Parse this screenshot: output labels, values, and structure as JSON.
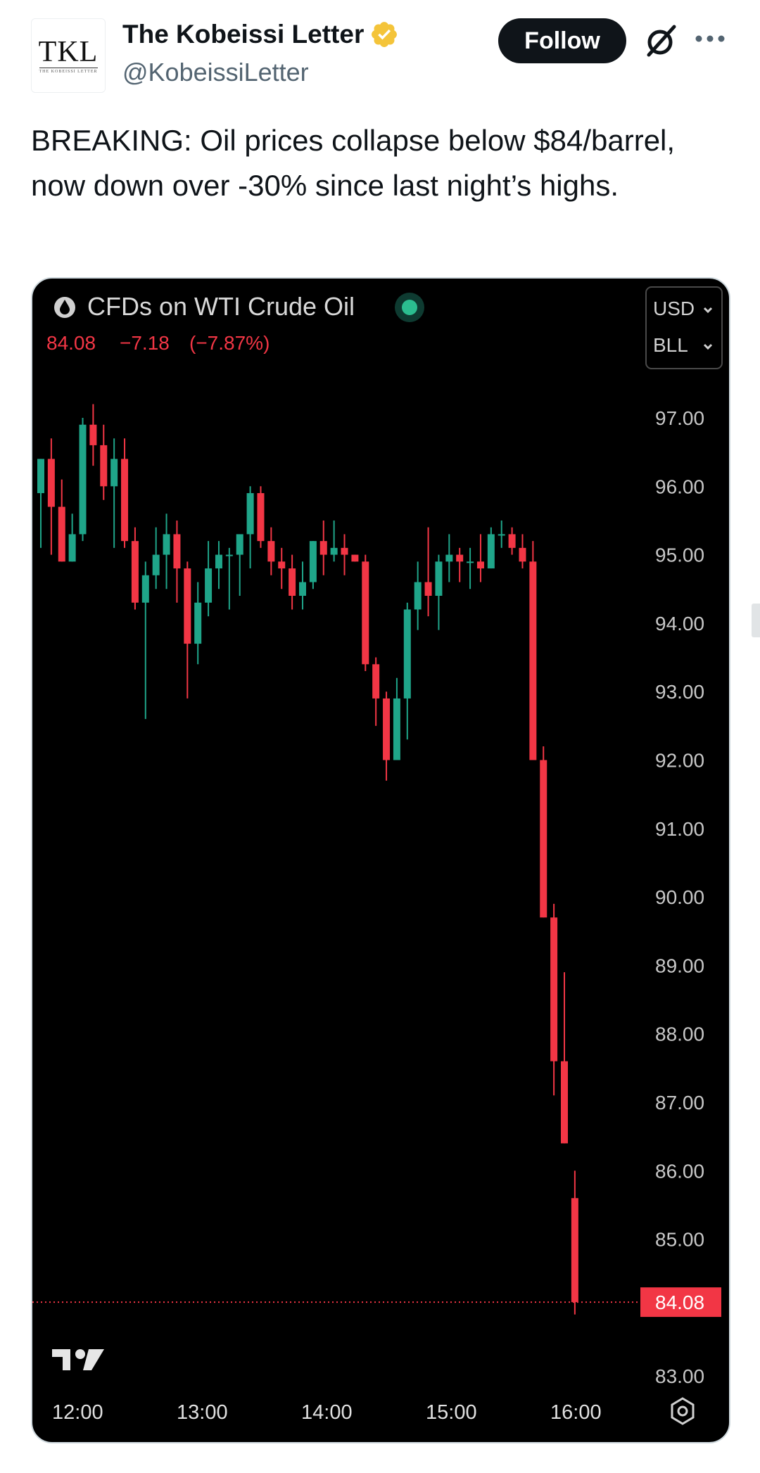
{
  "tweet": {
    "author_name": "The Kobeissi Letter",
    "author_handle": "@KobeissiLetter",
    "avatar_text": "TKL",
    "avatar_subtext": "THE KOBEISSI LETTER",
    "follow_label": "Follow",
    "text": "BREAKING: Oil prices collapse below $84/barrel, now down over -30% since last night’s highs.",
    "verified_color": "#f4c43a"
  },
  "chart_data": {
    "type": "candlestick",
    "title": "CFDs on WTI Crude Oil",
    "price_line": {
      "last": "84.08",
      "change": "−7.18",
      "change_pct": "(−7.87%)"
    },
    "currency_selector": "USD",
    "unit_selector": "BLL",
    "last_price_tag": "84.08",
    "y_ticks": [
      "97.00",
      "96.00",
      "95.00",
      "94.00",
      "93.00",
      "92.00",
      "91.00",
      "90.00",
      "89.00",
      "88.00",
      "87.00",
      "86.00",
      "85.00",
      "83.00"
    ],
    "ylim": [
      82.6,
      97.2
    ],
    "x_ticks": [
      "12:00",
      "13:00",
      "14:00",
      "15:00",
      "16:00"
    ],
    "colors": {
      "up": "#1fa589",
      "down": "#f23645",
      "background": "#000000",
      "axis_text": "#c8c8c8",
      "status_dot": "#2bbd8f"
    },
    "candles": [
      {
        "o": 95.9,
        "h": 96.4,
        "l": 95.1,
        "c": 96.4
      },
      {
        "o": 96.4,
        "h": 96.7,
        "l": 95.0,
        "c": 95.7
      },
      {
        "o": 95.7,
        "h": 96.1,
        "l": 94.9,
        "c": 94.9
      },
      {
        "o": 94.9,
        "h": 95.6,
        "l": 94.9,
        "c": 95.3
      },
      {
        "o": 95.3,
        "h": 97.0,
        "l": 95.2,
        "c": 96.9
      },
      {
        "o": 96.9,
        "h": 97.2,
        "l": 96.3,
        "c": 96.6
      },
      {
        "o": 96.6,
        "h": 96.9,
        "l": 95.8,
        "c": 96.0
      },
      {
        "o": 96.0,
        "h": 96.7,
        "l": 95.1,
        "c": 96.4
      },
      {
        "o": 96.4,
        "h": 96.7,
        "l": 95.1,
        "c": 95.2
      },
      {
        "o": 95.2,
        "h": 95.4,
        "l": 94.2,
        "c": 94.3
      },
      {
        "o": 94.3,
        "h": 94.9,
        "l": 92.6,
        "c": 94.7
      },
      {
        "o": 94.7,
        "h": 95.4,
        "l": 94.5,
        "c": 95.0
      },
      {
        "o": 95.0,
        "h": 95.6,
        "l": 94.5,
        "c": 95.3
      },
      {
        "o": 95.3,
        "h": 95.5,
        "l": 94.3,
        "c": 94.8
      },
      {
        "o": 94.8,
        "h": 94.9,
        "l": 92.9,
        "c": 93.7
      },
      {
        "o": 93.7,
        "h": 94.6,
        "l": 93.4,
        "c": 94.3
      },
      {
        "o": 94.3,
        "h": 95.2,
        "l": 94.1,
        "c": 94.8
      },
      {
        "o": 94.8,
        "h": 95.2,
        "l": 94.5,
        "c": 95.0
      },
      {
        "o": 95.0,
        "h": 95.1,
        "l": 94.2,
        "c": 95.0
      },
      {
        "o": 95.0,
        "h": 95.2,
        "l": 94.4,
        "c": 95.3
      },
      {
        "o": 95.3,
        "h": 96.0,
        "l": 94.8,
        "c": 95.9
      },
      {
        "o": 95.9,
        "h": 96.0,
        "l": 95.1,
        "c": 95.2
      },
      {
        "o": 95.2,
        "h": 95.4,
        "l": 94.7,
        "c": 94.9
      },
      {
        "o": 94.9,
        "h": 95.1,
        "l": 94.5,
        "c": 94.8
      },
      {
        "o": 94.8,
        "h": 95.0,
        "l": 94.2,
        "c": 94.4
      },
      {
        "o": 94.4,
        "h": 94.9,
        "l": 94.2,
        "c": 94.6
      },
      {
        "o": 94.6,
        "h": 95.2,
        "l": 94.5,
        "c": 95.2
      },
      {
        "o": 95.2,
        "h": 95.5,
        "l": 94.7,
        "c": 95.0
      },
      {
        "o": 95.0,
        "h": 95.5,
        "l": 94.9,
        "c": 95.1
      },
      {
        "o": 95.1,
        "h": 95.3,
        "l": 94.7,
        "c": 95.0
      },
      {
        "o": 95.0,
        "h": 95.0,
        "l": 94.9,
        "c": 94.9
      },
      {
        "o": 94.9,
        "h": 95.0,
        "l": 93.3,
        "c": 93.4
      },
      {
        "o": 93.4,
        "h": 93.5,
        "l": 92.5,
        "c": 92.9
      },
      {
        "o": 92.9,
        "h": 93.0,
        "l": 91.7,
        "c": 92.0
      },
      {
        "o": 92.0,
        "h": 93.2,
        "l": 92.0,
        "c": 92.9
      },
      {
        "o": 92.9,
        "h": 94.3,
        "l": 92.3,
        "c": 94.2
      },
      {
        "o": 94.2,
        "h": 94.9,
        "l": 93.9,
        "c": 94.6
      },
      {
        "o": 94.6,
        "h": 95.4,
        "l": 94.1,
        "c": 94.4
      },
      {
        "o": 94.4,
        "h": 95.0,
        "l": 93.9,
        "c": 94.9
      },
      {
        "o": 94.9,
        "h": 95.3,
        "l": 94.6,
        "c": 95.0
      },
      {
        "o": 95.0,
        "h": 95.1,
        "l": 94.6,
        "c": 94.9
      },
      {
        "o": 94.9,
        "h": 95.1,
        "l": 94.5,
        "c": 94.9
      },
      {
        "o": 94.9,
        "h": 95.3,
        "l": 94.6,
        "c": 94.8
      },
      {
        "o": 94.8,
        "h": 95.4,
        "l": 94.8,
        "c": 95.3
      },
      {
        "o": 95.3,
        "h": 95.5,
        "l": 95.1,
        "c": 95.3
      },
      {
        "o": 95.3,
        "h": 95.4,
        "l": 95.0,
        "c": 95.1
      },
      {
        "o": 95.1,
        "h": 95.3,
        "l": 94.8,
        "c": 94.9
      },
      {
        "o": 94.9,
        "h": 95.2,
        "l": 92.0,
        "c": 92.0
      },
      {
        "o": 92.0,
        "h": 92.2,
        "l": 89.7,
        "c": 89.7
      },
      {
        "o": 89.7,
        "h": 89.9,
        "l": 87.1,
        "c": 87.6
      },
      {
        "o": 87.6,
        "h": 88.9,
        "l": 86.4,
        "c": 86.4
      },
      {
        "o": 85.6,
        "h": 86.0,
        "l": 83.9,
        "c": 84.08
      }
    ]
  }
}
